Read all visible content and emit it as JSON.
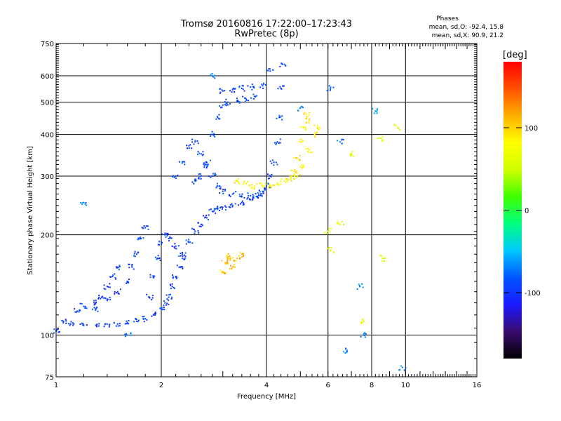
{
  "header": {
    "title": "Tromsø 20160816 17:22:00–17:23:43",
    "subtitle": "RwPretec (8p)",
    "stats_title": "Phases",
    "stats_line1": "mean, sd,O: -92.4, 15.8",
    "stats_line2": "mean, sd,X:  90.9, 21.2"
  },
  "chart_data": {
    "type": "scatter",
    "xlabel": "Frequency [MHz]",
    "ylabel": "Stationary phase Virtual Height [km]",
    "x_scale": "log",
    "y_scale": "log",
    "xlim": [
      1,
      16
    ],
    "ylim": [
      75,
      750
    ],
    "x_ticks": [
      1,
      2,
      4,
      6,
      8,
      10,
      16
    ],
    "y_ticks": [
      75,
      100,
      200,
      300,
      400,
      500,
      600,
      750
    ],
    "grid": true,
    "colorbar": {
      "label": "[deg]",
      "range": [
        -180,
        180
      ],
      "ticks": [
        100,
        0,
        -100
      ],
      "colors": [
        "#000000",
        "#3a0a6e",
        "#1a1aff",
        "#0055ff",
        "#00c8ff",
        "#00ff80",
        "#40ff00",
        "#d0ff00",
        "#ffff00",
        "#ffb000",
        "#ff5000",
        "#ff0000"
      ]
    },
    "series": [
      {
        "phase": -95,
        "points": [
          [
            1.0,
            103
          ],
          [
            1.05,
            110
          ],
          [
            1.1,
            108
          ],
          [
            1.2,
            107
          ],
          [
            1.3,
            107
          ],
          [
            1.4,
            108
          ],
          [
            1.5,
            108
          ],
          [
            1.6,
            109
          ],
          [
            1.7,
            110
          ],
          [
            1.8,
            112
          ],
          [
            1.9,
            115
          ],
          [
            2.0,
            120
          ],
          [
            2.05,
            125
          ],
          [
            2.1,
            130
          ],
          [
            2.15,
            140
          ],
          [
            2.2,
            150
          ],
          [
            2.25,
            160
          ],
          [
            2.3,
            170
          ],
          [
            2.4,
            190
          ],
          [
            2.5,
            205
          ],
          [
            2.6,
            215
          ],
          [
            2.7,
            225
          ],
          [
            2.8,
            235
          ],
          [
            2.9,
            240
          ],
          [
            3.0,
            242
          ],
          [
            3.2,
            245
          ],
          [
            3.4,
            250
          ],
          [
            3.6,
            255
          ],
          [
            3.8,
            262
          ],
          [
            3.9,
            270
          ],
          [
            4.0,
            280
          ],
          [
            4.1,
            300
          ],
          [
            4.2,
            330
          ],
          [
            4.3,
            380
          ],
          [
            4.35,
            450
          ],
          [
            4.4,
            550
          ],
          [
            4.45,
            650
          ]
        ]
      },
      {
        "phase": -95,
        "points": [
          [
            1.15,
            118
          ],
          [
            1.2,
            122
          ],
          [
            1.3,
            125
          ],
          [
            1.4,
            128
          ],
          [
            1.5,
            135
          ],
          [
            1.6,
            145
          ],
          [
            1.65,
            160
          ],
          [
            1.7,
            175
          ],
          [
            1.75,
            195
          ],
          [
            1.8,
            210
          ]
        ]
      },
      {
        "phase": -95,
        "points": [
          [
            1.3,
            120
          ],
          [
            1.35,
            130
          ],
          [
            1.4,
            140
          ],
          [
            1.45,
            150
          ],
          [
            1.5,
            160
          ]
        ]
      },
      {
        "phase": -95,
        "points": [
          [
            1.85,
            130
          ],
          [
            1.9,
            150
          ],
          [
            1.95,
            170
          ],
          [
            2.0,
            190
          ],
          [
            2.05,
            200
          ],
          [
            2.1,
            195
          ],
          [
            2.2,
            185
          ],
          [
            2.3,
            175
          ]
        ]
      },
      {
        "phase": -90,
        "points": [
          [
            2.2,
            300
          ],
          [
            2.3,
            330
          ],
          [
            2.4,
            370
          ],
          [
            2.5,
            380
          ],
          [
            2.6,
            350
          ],
          [
            2.7,
            320
          ],
          [
            2.8,
            300
          ],
          [
            2.9,
            280
          ],
          [
            3.0,
            270
          ],
          [
            3.2,
            265
          ],
          [
            3.4,
            260
          ],
          [
            3.6,
            262
          ],
          [
            3.8,
            265
          ]
        ]
      },
      {
        "phase": -90,
        "points": [
          [
            2.5,
            290
          ],
          [
            2.6,
            300
          ],
          [
            2.7,
            330
          ],
          [
            2.8,
            400
          ],
          [
            2.9,
            450
          ],
          [
            3.0,
            490
          ],
          [
            3.1,
            500
          ],
          [
            3.3,
            505
          ],
          [
            3.5,
            510
          ],
          [
            3.7,
            520
          ],
          [
            3.9,
            560
          ],
          [
            4.1,
            620
          ]
        ]
      },
      {
        "phase": -90,
        "points": [
          [
            3.0,
            540
          ],
          [
            3.2,
            545
          ],
          [
            3.4,
            550
          ],
          [
            3.6,
            555
          ]
        ]
      },
      {
        "phase": 85,
        "points": [
          [
            3.3,
            290
          ],
          [
            3.5,
            285
          ],
          [
            3.7,
            280
          ],
          [
            3.9,
            280
          ],
          [
            4.1,
            282
          ],
          [
            4.3,
            285
          ],
          [
            4.5,
            290
          ],
          [
            4.7,
            295
          ],
          [
            4.9,
            300
          ],
          [
            5.1,
            320
          ],
          [
            5.3,
            360
          ],
          [
            5.5,
            400
          ],
          [
            5.6,
            420
          ]
        ]
      },
      {
        "phase": 90,
        "points": [
          [
            4.8,
            310
          ],
          [
            4.9,
            340
          ],
          [
            5.0,
            380
          ],
          [
            5.1,
            420
          ],
          [
            5.2,
            460
          ],
          [
            5.3,
            440
          ]
        ]
      },
      {
        "phase": 110,
        "points": [
          [
            3.0,
            155
          ],
          [
            3.05,
            165
          ],
          [
            3.1,
            172
          ],
          [
            3.15,
            168
          ],
          [
            3.2,
            160
          ],
          [
            3.3,
            170
          ],
          [
            3.4,
            175
          ]
        ]
      },
      {
        "phase": 60,
        "points": [
          [
            6.5,
            215
          ],
          [
            7.0,
            350
          ],
          [
            8.5,
            390
          ],
          [
            9.5,
            420
          ],
          [
            8.6,
            170
          ],
          [
            7.6,
            110
          ],
          [
            6.1,
            180
          ],
          [
            6.0,
            205
          ]
        ]
      },
      {
        "phase": -70,
        "points": [
          [
            5.0,
            480
          ],
          [
            6.1,
            550
          ],
          [
            6.5,
            380
          ],
          [
            7.4,
            140
          ],
          [
            8.2,
            470
          ],
          [
            7.6,
            100
          ],
          [
            9.8,
            80
          ],
          [
            6.8,
            90
          ],
          [
            1.2,
            250
          ],
          [
            1.6,
            100
          ],
          [
            2.8,
            600
          ]
        ]
      }
    ]
  }
}
